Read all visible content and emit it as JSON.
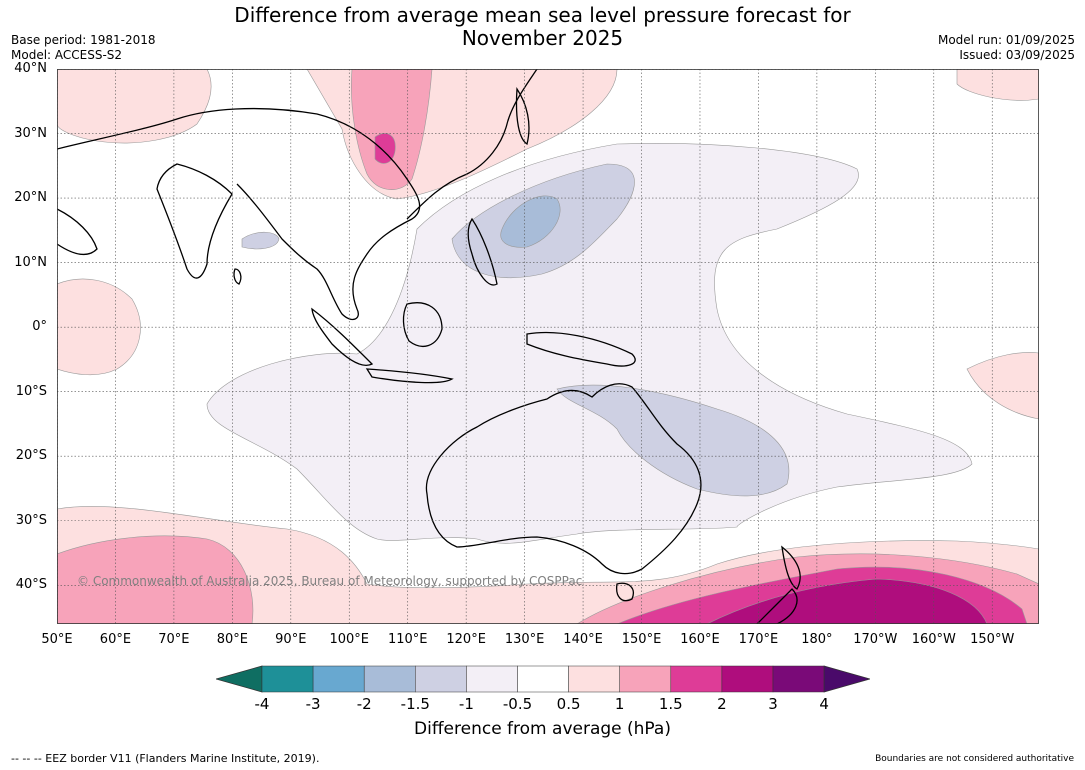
{
  "title_line1": "Difference from average mean sea level pressure forecast for",
  "title_line2": "November 2025",
  "base_period": "Base period: 1981-2018",
  "model": "Model: ACCESS-S2",
  "model_run": "Model run: 01/09/2025",
  "issued": "Issued: 03/09/2025",
  "copyright": "© Commonwealth of Australia 2025, Bureau of Meteorology, supported by COSPPac",
  "lat_labels": [
    "40°N",
    "30°N",
    "20°N",
    "10°N",
    "0°",
    "10°S",
    "20°S",
    "30°S",
    "40°S"
  ],
  "lat_values": [
    40,
    30,
    20,
    10,
    0,
    -10,
    -20,
    -30,
    -40
  ],
  "lon_labels": [
    "50°E",
    "60°E",
    "70°E",
    "80°E",
    "90°E",
    "100°E",
    "110°E",
    "120°E",
    "130°E",
    "140°E",
    "150°E",
    "160°E",
    "170°E",
    "180°",
    "170°W",
    "160°W",
    "150°W"
  ],
  "lon_values": [
    50,
    60,
    70,
    80,
    90,
    100,
    110,
    120,
    130,
    140,
    150,
    160,
    170,
    180,
    190,
    200,
    210
  ],
  "extent": {
    "lon_min": 50,
    "lon_max": 218,
    "lat_min": -46,
    "lat_max": 40
  },
  "colorbar": {
    "labels": [
      "-4",
      "-3",
      "-2",
      "-1.5",
      "-1",
      "-0.5",
      "0.5",
      "1",
      "1.5",
      "2",
      "3",
      "4"
    ],
    "colors": [
      "#0f6e62",
      "#1e9098",
      "#68a8d0",
      "#a8bcd8",
      "#ced0e3",
      "#f3eff6",
      "#ffffff",
      "#fde0e0",
      "#f7a3ba",
      "#de3c97",
      "#af0d7d",
      "#7a0a78",
      "#4a0a6a"
    ],
    "title": "Difference from average (hPa)"
  },
  "eez_note": "--  --  -- EEZ border V11 (Flanders Marine Institute, 2019).",
  "disclaimer": "Boundaries are not considered authoritative"
}
